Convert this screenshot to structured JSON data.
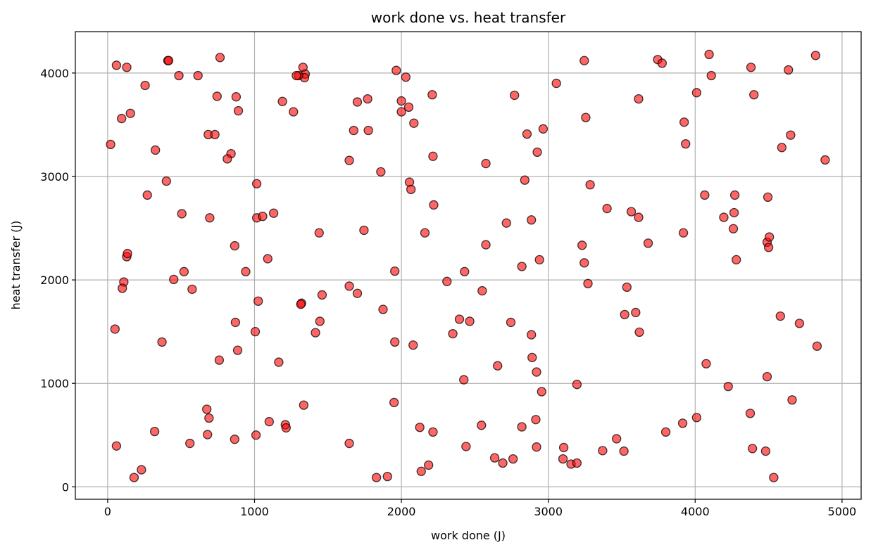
{
  "chart_data": {
    "type": "scatter",
    "title": "work done vs. heat transfer",
    "xlabel": "work done (J)",
    "ylabel": "heat transfer (J)",
    "xlim": [
      -220,
      5130
    ],
    "ylim": [
      -120,
      4400
    ],
    "xticks": [
      0,
      1000,
      2000,
      3000,
      4000,
      5000
    ],
    "yticks": [
      0,
      1000,
      2000,
      3000,
      4000
    ],
    "grid": true,
    "marker_color": "#ff0000",
    "marker_edge_color": "#000000",
    "marker_alpha": 0.6,
    "points": [
      [
        410,
        4120
      ],
      [
        415,
        4120
      ],
      [
        60,
        4075
      ],
      [
        130,
        4055
      ],
      [
        765,
        4150
      ],
      [
        1330,
        4055
      ],
      [
        1345,
        3990
      ],
      [
        1340,
        3955
      ],
      [
        1300,
        3975
      ],
      [
        1285,
        3975
      ],
      [
        485,
        3975
      ],
      [
        615,
        3975
      ],
      [
        255,
        3880
      ],
      [
        95,
        3560
      ],
      [
        155,
        3610
      ],
      [
        745,
        3775
      ],
      [
        875,
        3770
      ],
      [
        890,
        3635
      ],
      [
        1190,
        3725
      ],
      [
        1265,
        3625
      ],
      [
        1965,
        4025
      ],
      [
        2030,
        3960
      ],
      [
        2000,
        3730
      ],
      [
        2050,
        3670
      ],
      [
        2000,
        3625
      ],
      [
        2210,
        3790
      ],
      [
        1700,
        3720
      ],
      [
        1770,
        3750
      ],
      [
        1675,
        3445
      ],
      [
        1775,
        3445
      ],
      [
        2085,
        3515
      ],
      [
        2770,
        3785
      ],
      [
        3055,
        3900
      ],
      [
        3245,
        4120
      ],
      [
        3255,
        3570
      ],
      [
        3615,
        3750
      ],
      [
        3745,
        4130
      ],
      [
        3775,
        4095
      ],
      [
        4095,
        4180
      ],
      [
        4110,
        3975
      ],
      [
        4380,
        4055
      ],
      [
        4400,
        3790
      ],
      [
        4635,
        4030
      ],
      [
        4820,
        4170
      ],
      [
        4010,
        3810
      ],
      [
        3925,
        3525
      ],
      [
        3935,
        3315
      ],
      [
        4650,
        3400
      ],
      [
        4590,
        3280
      ],
      [
        4885,
        3160
      ],
      [
        20,
        3310
      ],
      [
        325,
        3255
      ],
      [
        685,
        3405
      ],
      [
        730,
        3405
      ],
      [
        840,
        3220
      ],
      [
        815,
        3170
      ],
      [
        1645,
        3155
      ],
      [
        2215,
        3195
      ],
      [
        2575,
        3125
      ],
      [
        2855,
        3410
      ],
      [
        2925,
        3235
      ],
      [
        2965,
        3460
      ],
      [
        1860,
        3045
      ],
      [
        2055,
        2945
      ],
      [
        2065,
        2875
      ],
      [
        2220,
        2725
      ],
      [
        2840,
        2965
      ],
      [
        3285,
        2920
      ],
      [
        270,
        2820
      ],
      [
        400,
        2955
      ],
      [
        1015,
        2930
      ],
      [
        505,
        2640
      ],
      [
        695,
        2600
      ],
      [
        1015,
        2600
      ],
      [
        1055,
        2615
      ],
      [
        1130,
        2645
      ],
      [
        1440,
        2455
      ],
      [
        1745,
        2480
      ],
      [
        2160,
        2455
      ],
      [
        2715,
        2550
      ],
      [
        2885,
        2580
      ],
      [
        3400,
        2690
      ],
      [
        3565,
        2660
      ],
      [
        3615,
        2605
      ],
      [
        4065,
        2820
      ],
      [
        4195,
        2605
      ],
      [
        4265,
        2650
      ],
      [
        4260,
        2495
      ],
      [
        4270,
        2820
      ],
      [
        4495,
        2800
      ],
      [
        3920,
        2455
      ],
      [
        3680,
        2355
      ],
      [
        4490,
        2365
      ],
      [
        4505,
        2415
      ],
      [
        4500,
        2315
      ],
      [
        130,
        2225
      ],
      [
        135,
        2255
      ],
      [
        865,
        2330
      ],
      [
        1090,
        2205
      ],
      [
        2575,
        2340
      ],
      [
        3230,
        2335
      ],
      [
        3245,
        2165
      ],
      [
        2940,
        2195
      ],
      [
        4280,
        2195
      ],
      [
        520,
        2080
      ],
      [
        940,
        2080
      ],
      [
        1955,
        2085
      ],
      [
        2430,
        2080
      ],
      [
        2820,
        2130
      ],
      [
        110,
        1980
      ],
      [
        100,
        1920
      ],
      [
        450,
        2005
      ],
      [
        575,
        1910
      ],
      [
        1460,
        1855
      ],
      [
        1645,
        1940
      ],
      [
        1700,
        1870
      ],
      [
        2310,
        1985
      ],
      [
        2550,
        1895
      ],
      [
        3270,
        1965
      ],
      [
        3535,
        1930
      ],
      [
        1025,
        1795
      ],
      [
        1320,
        1775
      ],
      [
        1315,
        1765
      ],
      [
        1875,
        1715
      ],
      [
        870,
        1590
      ],
      [
        1445,
        1600
      ],
      [
        2395,
        1620
      ],
      [
        2465,
        1600
      ],
      [
        2745,
        1590
      ],
      [
        3520,
        1665
      ],
      [
        3595,
        1685
      ],
      [
        3620,
        1495
      ],
      [
        4580,
        1650
      ],
      [
        4710,
        1580
      ],
      [
        50,
        1525
      ],
      [
        370,
        1400
      ],
      [
        1005,
        1500
      ],
      [
        1415,
        1490
      ],
      [
        1955,
        1400
      ],
      [
        2080,
        1370
      ],
      [
        2350,
        1480
      ],
      [
        2885,
        1470
      ],
      [
        2890,
        1250
      ],
      [
        4830,
        1360
      ],
      [
        760,
        1225
      ],
      [
        885,
        1320
      ],
      [
        1165,
        1205
      ],
      [
        2655,
        1170
      ],
      [
        2920,
        1110
      ],
      [
        4075,
        1190
      ],
      [
        2425,
        1035
      ],
      [
        3195,
        990
      ],
      [
        2955,
        920
      ],
      [
        4225,
        970
      ],
      [
        4490,
        1065
      ],
      [
        4660,
        840
      ],
      [
        675,
        750
      ],
      [
        690,
        665
      ],
      [
        1335,
        790
      ],
      [
        1950,
        815
      ],
      [
        4375,
        710
      ],
      [
        4010,
        670
      ],
      [
        3915,
        615
      ],
      [
        2915,
        650
      ],
      [
        320,
        535
      ],
      [
        560,
        420
      ],
      [
        680,
        505
      ],
      [
        865,
        460
      ],
      [
        1010,
        500
      ],
      [
        1100,
        630
      ],
      [
        1210,
        600
      ],
      [
        1215,
        570
      ],
      [
        2125,
        575
      ],
      [
        2215,
        530
      ],
      [
        2545,
        595
      ],
      [
        2820,
        580
      ],
      [
        3800,
        530
      ],
      [
        60,
        395
      ],
      [
        1645,
        420
      ],
      [
        2440,
        390
      ],
      [
        2920,
        385
      ],
      [
        3105,
        380
      ],
      [
        3370,
        350
      ],
      [
        3465,
        465
      ],
      [
        3515,
        345
      ],
      [
        4390,
        370
      ],
      [
        4480,
        345
      ],
      [
        230,
        165
      ],
      [
        180,
        90
      ],
      [
        1830,
        90
      ],
      [
        1905,
        100
      ],
      [
        2135,
        150
      ],
      [
        2185,
        210
      ],
      [
        2635,
        280
      ],
      [
        2690,
        230
      ],
      [
        2760,
        270
      ],
      [
        3100,
        270
      ],
      [
        3155,
        220
      ],
      [
        3195,
        230
      ],
      [
        4535,
        90
      ]
    ]
  }
}
